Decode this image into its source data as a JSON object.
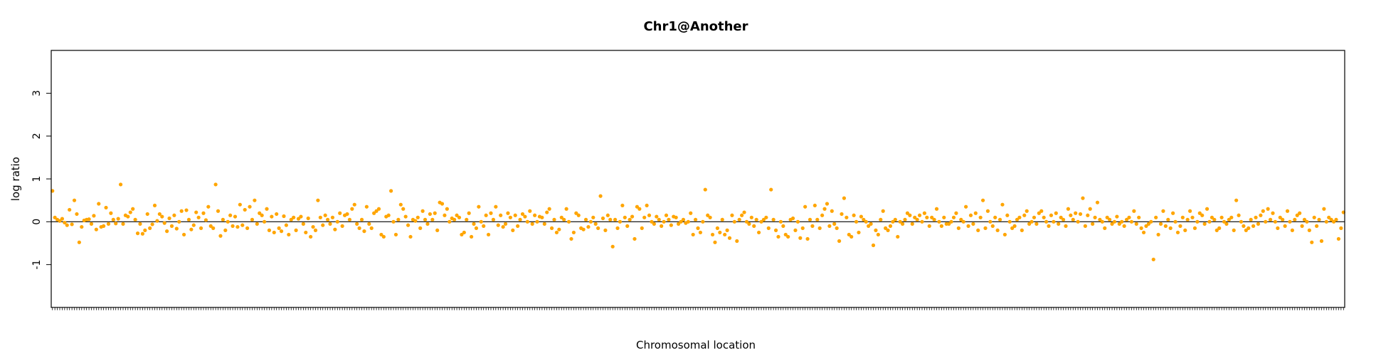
{
  "chart_data": {
    "type": "scatter",
    "title": "Chr1@Another",
    "xlabel": "Chromosomal location",
    "ylabel": "log ratio",
    "ylim": [
      -2,
      4
    ],
    "yticks": [
      {
        "value": -1,
        "label": "-1"
      },
      {
        "value": 0,
        "label": "0"
      },
      {
        "value": 1,
        "label": "1"
      },
      {
        "value": 2,
        "label": "2"
      },
      {
        "value": 3,
        "label": "3"
      }
    ],
    "reference_line": 0,
    "point_color": "#FFA500",
    "series": [
      {
        "values": [
          0.72,
          0.1,
          0.05,
          0.02,
          0.07,
          -0.02,
          -0.08,
          0.28,
          -0.06,
          0.5,
          0.18,
          -0.48,
          -0.12,
          0.03,
          0.05,
          0.06,
          -0.05,
          0.14,
          -0.18,
          0.42,
          -0.12,
          -0.1,
          0.33,
          -0.05,
          0.2,
          0.05,
          -0.04,
          0.07,
          0.87,
          -0.05,
          0.15,
          0.12,
          0.22,
          0.3,
          0.05,
          -0.27,
          -0.05,
          -0.28,
          -0.2,
          0.18,
          -0.15,
          -0.06,
          0.38,
          0.02,
          0.18,
          0.12,
          -0.03,
          -0.22,
          0.08,
          -0.1,
          0.15,
          -0.16,
          0.0,
          0.25,
          -0.3,
          0.27,
          0.05,
          -0.18,
          -0.08,
          0.22,
          0.1,
          -0.15,
          0.2,
          0.04,
          0.35,
          -0.1,
          -0.15,
          0.87,
          0.25,
          -0.33,
          0.05,
          -0.2,
          0.0,
          0.15,
          -0.1,
          0.12,
          -0.12,
          0.4,
          -0.08,
          0.28,
          -0.15,
          0.35,
          0.05,
          0.5,
          -0.05,
          0.2,
          0.15,
          0.0,
          0.3,
          -0.2,
          0.12,
          -0.25,
          0.18,
          -0.15,
          -0.22,
          0.13,
          -0.08,
          -0.3,
          0.05,
          0.1,
          -0.2,
          0.07,
          0.12,
          -0.05,
          -0.25,
          0.08,
          -0.35,
          -0.12,
          -0.2,
          0.5,
          0.1,
          -0.08,
          0.15,
          0.05,
          -0.05,
          0.1,
          -0.18,
          0.0,
          0.2,
          -0.1,
          0.15,
          0.18,
          0.05,
          0.3,
          0.4,
          -0.05,
          -0.15,
          0.05,
          -0.22,
          0.35,
          -0.05,
          -0.15,
          0.2,
          0.25,
          0.3,
          -0.3,
          -0.35,
          0.12,
          0.15,
          0.72,
          0.0,
          -0.3,
          0.05,
          0.4,
          0.3,
          0.12,
          -0.08,
          -0.35,
          0.05,
          0.02,
          0.1,
          -0.15,
          0.25,
          0.05,
          -0.05,
          0.18,
          0.05,
          0.2,
          -0.2,
          0.45,
          0.42,
          0.15,
          0.3,
          0.0,
          0.08,
          0.05,
          0.15,
          0.1,
          -0.3,
          -0.25,
          0.05,
          0.2,
          -0.35,
          -0.05,
          -0.15,
          0.35,
          0.0,
          -0.1,
          0.15,
          -0.3,
          0.2,
          0.05,
          0.35,
          -0.08,
          0.15,
          -0.12,
          -0.05,
          0.2,
          0.1,
          -0.2,
          0.15,
          -0.1,
          0.05,
          0.18,
          0.12,
          0.0,
          0.25,
          -0.05,
          0.15,
          0.0,
          0.12,
          0.1,
          -0.05,
          0.22,
          0.3,
          -0.15,
          0.05,
          -0.25,
          -0.18,
          0.1,
          0.05,
          0.3,
          0.0,
          -0.4,
          -0.25,
          0.2,
          0.15,
          -0.15,
          -0.18,
          0.05,
          -0.12,
          0.0,
          0.1,
          -0.05,
          -0.15,
          0.6,
          0.08,
          -0.2,
          0.15,
          0.05,
          -0.58,
          0.05,
          -0.15,
          0.0,
          0.38,
          0.1,
          -0.1,
          0.05,
          0.12,
          -0.4,
          0.35,
          0.3,
          -0.15,
          0.1,
          0.38,
          0.15,
          0.0,
          -0.05,
          0.12,
          0.05,
          -0.1,
          0.0,
          0.15,
          0.05,
          -0.08,
          0.12,
          0.1,
          -0.05,
          0.0,
          0.05,
          -0.03,
          0.0,
          0.2,
          -0.3,
          0.05,
          -0.15,
          -0.25,
          0.0,
          0.75,
          0.15,
          0.1,
          -0.3,
          -0.48,
          -0.15,
          -0.25,
          0.05,
          -0.3,
          -0.2,
          -0.38,
          0.15,
          0.0,
          -0.45,
          0.05,
          0.15,
          0.22,
          0.0,
          -0.05,
          0.1,
          -0.1,
          0.05,
          -0.25,
          0.0,
          0.05,
          0.1,
          -0.15,
          0.75,
          0.05,
          -0.2,
          -0.35,
          0.0,
          -0.1,
          -0.3,
          -0.35,
          0.05,
          0.08,
          -0.2,
          0.0,
          -0.38,
          -0.15,
          0.35,
          -0.4,
          0.05,
          -0.1,
          0.38,
          0.05,
          -0.15,
          0.15,
          0.3,
          0.42,
          -0.1,
          0.25,
          -0.05,
          -0.15,
          -0.45,
          0.18,
          0.55,
          0.1,
          -0.3,
          -0.35,
          0.15,
          0.0,
          -0.25,
          0.12,
          0.05,
          0.0,
          -0.1,
          -0.05,
          -0.55,
          -0.2,
          -0.3,
          0.05,
          0.25,
          -0.15,
          -0.2,
          -0.1,
          0.0,
          0.05,
          -0.35,
          0.0,
          -0.05,
          0.05,
          0.2,
          0.15,
          -0.05,
          0.1,
          0.05,
          0.15,
          0.0,
          0.2,
          0.1,
          -0.1,
          0.1,
          0.05,
          0.3,
          0.0,
          -0.1,
          0.1,
          -0.05,
          -0.05,
          0.0,
          0.1,
          0.2,
          -0.15,
          0.05,
          0.0,
          0.35,
          -0.1,
          0.15,
          -0.05,
          0.2,
          -0.2,
          0.1,
          0.5,
          -0.15,
          0.25,
          0.0,
          -0.1,
          0.1,
          -0.2,
          0.05,
          0.4,
          -0.3,
          0.15,
          0.0,
          -0.15,
          -0.1,
          0.05,
          0.1,
          -0.2,
          0.15,
          0.25,
          -0.05,
          0.0,
          0.1,
          -0.05,
          0.2,
          0.25,
          0.1,
          0.0,
          -0.1,
          0.15,
          0.0,
          0.2,
          -0.05,
          0.1,
          0.05,
          -0.1,
          0.3,
          0.15,
          0.05,
          0.2,
          0.0,
          0.18,
          0.55,
          -0.1,
          0.15,
          0.3,
          -0.05,
          0.1,
          0.45,
          0.05,
          0.0,
          -0.15,
          0.1,
          0.05,
          -0.05,
          0.0,
          0.12,
          -0.05,
          0.0,
          -0.1,
          0.05,
          0.1,
          0.0,
          0.25,
          -0.05,
          0.1,
          -0.15,
          -0.25,
          -0.1,
          -0.05,
          0.0,
          -0.88,
          0.1,
          -0.3,
          -0.05,
          0.25,
          -0.1,
          0.05,
          -0.15,
          0.2,
          0.0,
          -0.25,
          -0.1,
          0.1,
          -0.2,
          0.05,
          0.25,
          0.1,
          -0.15,
          0.0,
          0.2,
          0.15,
          -0.05,
          0.3,
          0.0,
          0.1,
          0.05,
          -0.2,
          -0.15,
          0.1,
          0.0,
          -0.05,
          0.05,
          0.1,
          -0.2,
          0.5,
          0.15,
          0.0,
          -0.1,
          -0.2,
          -0.15,
          0.05,
          -0.1,
          0.1,
          -0.05,
          0.15,
          0.25,
          0.0,
          0.3,
          0.05,
          0.2,
          0.0,
          -0.15,
          0.1,
          0.05,
          -0.1,
          0.25,
          0.0,
          -0.2,
          0.05,
          0.15,
          0.2,
          -0.1,
          0.05,
          0.0,
          -0.2,
          -0.48,
          0.1,
          -0.1,
          0.05,
          -0.45,
          0.3,
          0.0,
          0.1,
          0.05,
          0.0,
          0.05,
          -0.4,
          -0.15,
          0.22
        ]
      }
    ]
  }
}
